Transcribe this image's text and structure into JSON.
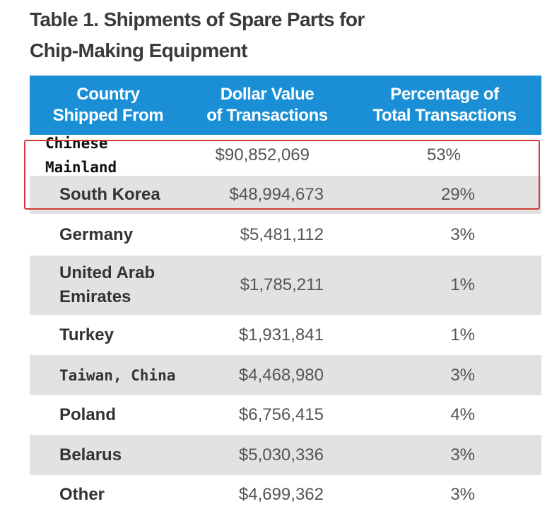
{
  "title": "Table 1. Shipments of Spare Parts for\nChip-Making Equipment",
  "headers": {
    "country": "Country\nShipped From",
    "value": "Dollar Value\nof Transactions",
    "percentage": "Percentage of\nTotal Transactions"
  },
  "rows": [
    {
      "country": "Chinese Mainland",
      "value": "$90,852,069",
      "percentage": "53%"
    },
    {
      "country": "South Korea",
      "value": "$48,994,673",
      "percentage": "29%"
    },
    {
      "country": "Germany",
      "value": "$5,481,112",
      "percentage": "3%"
    },
    {
      "country": "United Arab\nEmirates",
      "value": "$1,785,211",
      "percentage": "1%"
    },
    {
      "country": "Turkey",
      "value": "$1,931,841",
      "percentage": "1%"
    },
    {
      "country": "Taiwan, China",
      "value": "$4,468,980",
      "percentage": "3%"
    },
    {
      "country": "Poland",
      "value": "$6,756,415",
      "percentage": "4%"
    },
    {
      "country": "Belarus",
      "value": "$5,030,336",
      "percentage": "3%"
    },
    {
      "country": "Other",
      "value": "$4,699,362",
      "percentage": "3%"
    }
  ],
  "colors": {
    "header_bg": "#1a8fd6",
    "shaded_row": "#e2e2e2",
    "highlight_border": "#d13b34"
  }
}
